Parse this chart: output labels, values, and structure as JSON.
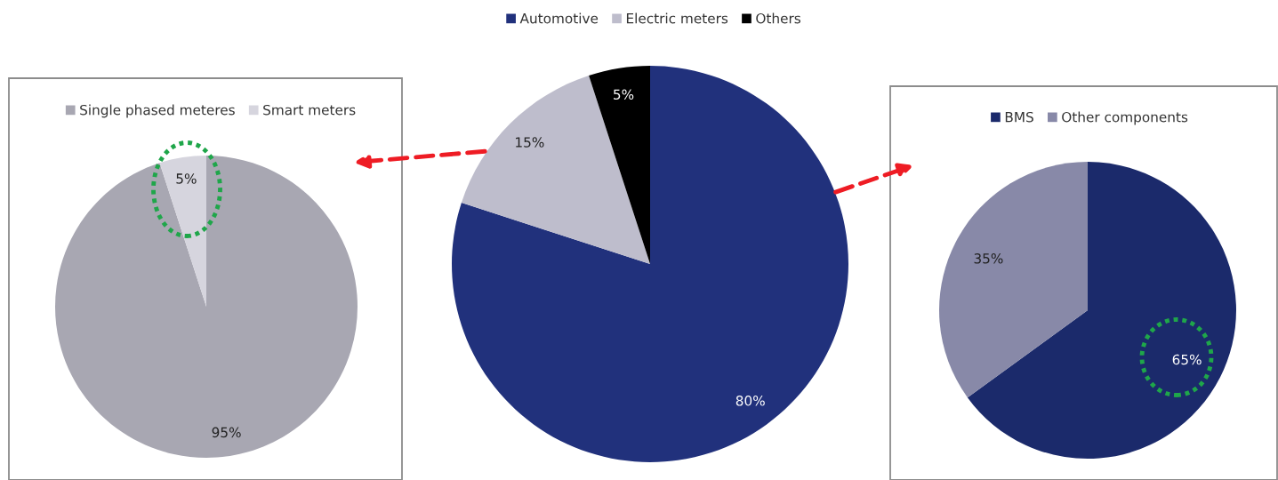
{
  "chart_data": [
    {
      "type": "pie",
      "categories": [
        "Single phased meteres",
        "Smart meters"
      ],
      "values": [
        95,
        5
      ],
      "value_labels": [
        "95%",
        "5%"
      ],
      "colors": [
        "#a8a7b2",
        "#d6d5de"
      ],
      "legend": "top"
    },
    {
      "type": "pie",
      "categories": [
        "Automotive",
        "Electric meters",
        "Others"
      ],
      "values": [
        80,
        15,
        5
      ],
      "value_labels": [
        "80%",
        "15%",
        "5%"
      ],
      "colors": [
        "#21317c",
        "#bebdcc",
        "#000000"
      ],
      "legend": "top"
    },
    {
      "type": "pie",
      "categories": [
        "BMS",
        "Other components"
      ],
      "values": [
        65,
        35
      ],
      "value_labels": [
        "65%",
        "35%"
      ],
      "colors": [
        "#1b2a6b",
        "#8889a8"
      ],
      "legend": "top"
    }
  ]
}
